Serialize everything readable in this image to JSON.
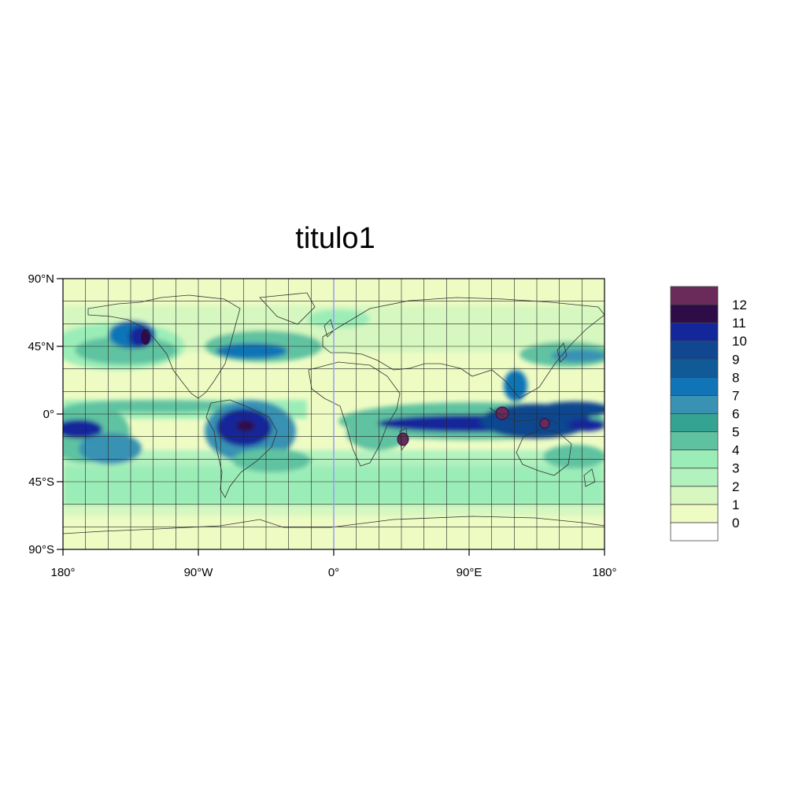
{
  "title": "titulo1",
  "map": {
    "projection": "cylindrical-equidistant",
    "lon_range": [
      -180,
      180
    ],
    "lat_range": [
      -90,
      90
    ],
    "grid_spacing_deg": 15,
    "x_ticks": [
      {
        "value": -180,
        "label": "180°"
      },
      {
        "value": -90,
        "label": "90°W"
      },
      {
        "value": 0,
        "label": "0°"
      },
      {
        "value": 90,
        "label": "90°E"
      },
      {
        "value": 180,
        "label": "180°"
      }
    ],
    "y_ticks": [
      {
        "value": 90,
        "label": "90°N"
      },
      {
        "value": 45,
        "label": "45°N"
      },
      {
        "value": 0,
        "label": "0°"
      },
      {
        "value": -45,
        "label": "45°S"
      },
      {
        "value": -90,
        "label": "90°S"
      }
    ]
  },
  "colorbar": {
    "levels": [
      "0",
      "1",
      "2",
      "3",
      "4",
      "5",
      "6",
      "7",
      "8",
      "9",
      "10",
      "11",
      "12"
    ],
    "colors": [
      "#ffffff",
      "#eefcc4",
      "#d6f8c0",
      "#b2f2bf",
      "#9bedb8",
      "#5ec2a0",
      "#35a392",
      "#3992b3",
      "#1174b6",
      "#0f5a97",
      "#10478f",
      "#13279a",
      "#2e0c47",
      "#6a2a5a"
    ]
  },
  "chart_data": {
    "type": "heatmap",
    "title": "titulo1",
    "x_axis": {
      "range": [
        -180,
        180
      ],
      "tick_labels": [
        "180°",
        "90°W",
        "0°",
        "90°E",
        "180°"
      ]
    },
    "y_axis": {
      "range": [
        -90,
        90
      ],
      "tick_labels": [
        "90°N",
        "45°N",
        "0°",
        "45°S",
        "90°S"
      ]
    },
    "legend_placement": "right",
    "levels": [
      0,
      1,
      2,
      3,
      4,
      5,
      6,
      7,
      8,
      9,
      10,
      11,
      12
    ],
    "features": [
      {
        "lon": -65,
        "lat": -10,
        "value": 11
      },
      {
        "lon": 100,
        "lat": 2,
        "value": 12
      },
      {
        "lon": 150,
        "lat": -5,
        "value": 12
      },
      {
        "lon": 45,
        "lat": -18,
        "value": 12
      },
      {
        "lon": -135,
        "lat": 55,
        "value": 10
      },
      {
        "lon": -170,
        "lat": -10,
        "value": 10
      },
      {
        "lon": -60,
        "lat": 40,
        "value": 8
      },
      {
        "lon": 150,
        "lat": 5,
        "value": 10
      },
      {
        "lon": 90,
        "lat": -5,
        "value": 10
      }
    ]
  }
}
